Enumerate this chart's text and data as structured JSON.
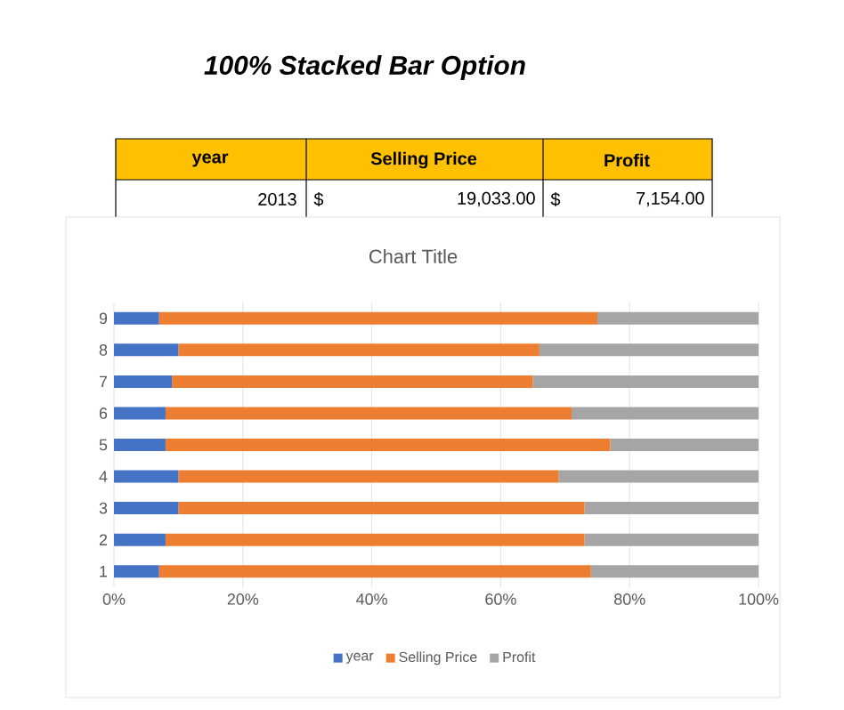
{
  "chart_data": {
    "type": "bar",
    "orientation": "horizontal",
    "stacked": true,
    "title": "Chart Title",
    "annotations": [
      "100% Stacked Bar Option",
      "year",
      "Selling Price",
      "Profit",
      "2013",
      "$",
      "19,033.00",
      "$",
      "7,154.00"
    ],
    "categories": [
      "9",
      "8",
      "7",
      "6",
      "5",
      "4",
      "3",
      "2",
      "1"
    ],
    "series": [
      {
        "name": "year",
        "color": "#4472c4",
        "values": [
          7,
          10,
          9,
          8,
          8,
          10,
          10,
          8,
          7
        ]
      },
      {
        "name": "Selling Price",
        "color": "#ed7d31",
        "values": [
          68,
          56,
          56,
          63,
          69,
          59,
          63,
          65,
          67
        ]
      },
      {
        "name": "Profit",
        "color": "#a5a5a5",
        "values": [
          25,
          34,
          35,
          29,
          23,
          31,
          27,
          27,
          26
        ]
      }
    ],
    "xlim": [
      0,
      100
    ],
    "xticks": [
      {
        "value": 0,
        "label": "0%"
      },
      {
        "value": 20,
        "label": "20%"
      },
      {
        "value": 40,
        "label": "40%"
      },
      {
        "value": 60,
        "label": "60%"
      },
      {
        "value": 80,
        "label": "80%"
      },
      {
        "value": 100,
        "label": "100%"
      }
    ],
    "grid": "x",
    "legend": "bottom"
  }
}
